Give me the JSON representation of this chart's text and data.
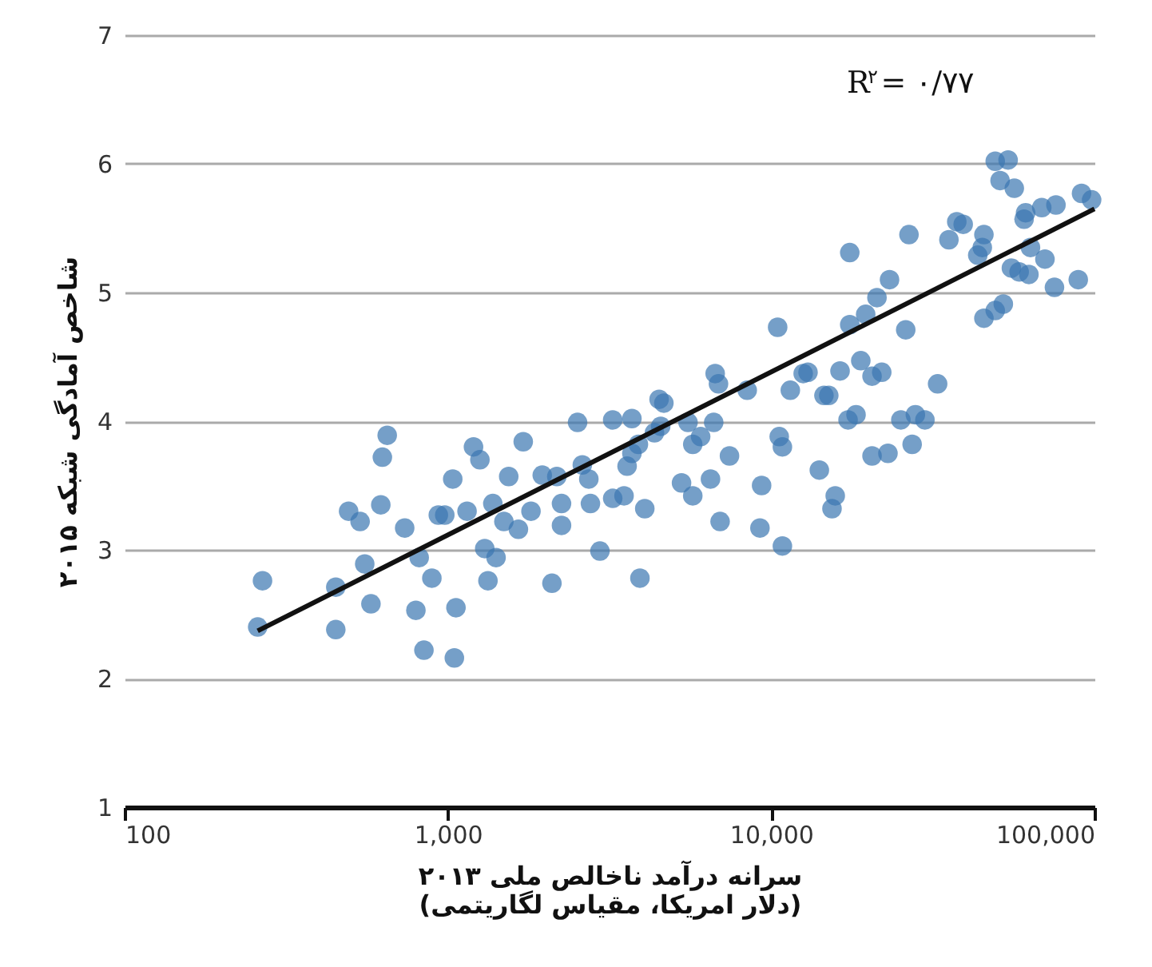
{
  "chart_data": {
    "type": "scatter",
    "xlabel": "سرانه درآمد ناخالص ملی ۲۰۱۳\n(دلار امریکا، مقیاس لگاریتمی)",
    "ylabel": "شاخص آمادگی شبکه ۲۰۱۵",
    "annotations": [
      "R$^{۲}$= ۰/۷۷"
    ],
    "log": "x",
    "grid": "y",
    "xlim": [
      100,
      100000
    ],
    "xticks": [
      {
        "value": 100,
        "label": "100"
      },
      {
        "value": 1000,
        "label": "1,000"
      },
      {
        "value": 10000,
        "label": "10,000"
      },
      {
        "value": 100000,
        "label": "100,000"
      }
    ],
    "ylim": [
      1,
      7
    ],
    "yticks": [
      1,
      2,
      3,
      4,
      5,
      6,
      7
    ],
    "series": [
      {
        "color": "#3a76b0",
        "marker": "circle",
        "x": [
          258,
          267,
          450,
          450,
          493,
          535,
          553,
          578,
          620,
          627,
          649,
          735,
          796,
          815,
          843,
          892,
          934,
          978,
          1035,
          1047,
          1059,
          1146,
          1200,
          1256,
          1300,
          1330,
          1377,
          1409,
          1490,
          1542,
          1652,
          1710,
          1807,
          1958,
          2098,
          2172,
          2246,
          2246,
          2518,
          2605,
          2728,
          2760,
          2953,
          3234,
          3234,
          3506,
          3583,
          3708,
          3708,
          3884,
          3926,
          4064,
          4355,
          4500,
          4552,
          4656,
          5280,
          5530,
          5720,
          5720,
          6050,
          6490,
          6640,
          6710,
          6870,
          6950,
          7430,
          8430,
          9230,
          9340,
          10470,
          10590,
          10830,
          10830,
          11460,
          12560,
          13000,
          14090,
          14560,
          15070,
          15420,
          15780,
          16330,
          17290,
          17500,
          17500,
          18300,
          18930,
          19600,
          20510,
          20510,
          21240,
          21980,
          22970,
          23230,
          25180,
          26070,
          26680,
          27290,
          27930,
          29890,
          32720,
          35460,
          37500,
          39260,
          43550,
          44980,
          45500,
          45500,
          49320,
          49320,
          51050,
          52240,
          54060,
          55340,
          56490,
          58480,
          60560,
          61240,
          62680,
          63390,
          68700,
          70270,
          75200,
          76000,
          89100,
          91200,
          98000
        ],
        "values": [
          2.4,
          2.76,
          2.38,
          2.71,
          3.3,
          3.22,
          2.89,
          2.58,
          3.35,
          3.72,
          3.89,
          3.17,
          2.53,
          2.94,
          2.22,
          2.78,
          3.27,
          3.27,
          3.55,
          2.16,
          2.55,
          3.3,
          3.8,
          3.7,
          3.01,
          2.76,
          3.36,
          2.94,
          3.22,
          3.57,
          3.16,
          3.84,
          3.3,
          3.58,
          2.74,
          3.57,
          3.36,
          3.19,
          3.99,
          3.66,
          3.55,
          3.36,
          2.99,
          4.01,
          3.4,
          3.42,
          3.65,
          4.02,
          3.75,
          3.82,
          2.78,
          3.32,
          3.91,
          4.17,
          3.96,
          4.14,
          3.52,
          3.99,
          3.82,
          3.42,
          3.88,
          3.55,
          3.99,
          4.37,
          4.29,
          3.22,
          3.73,
          4.24,
          3.17,
          3.5,
          4.73,
          3.88,
          3.8,
          3.03,
          4.24,
          4.37,
          4.38,
          3.62,
          4.2,
          4.2,
          3.32,
          3.42,
          4.39,
          4.01,
          5.31,
          4.75,
          4.05,
          4.47,
          4.83,
          3.73,
          4.35,
          4.96,
          4.38,
          3.75,
          5.1,
          4.01,
          4.71,
          5.45,
          3.82,
          4.05,
          4.01,
          4.29,
          5.41,
          5.55,
          5.53,
          5.29,
          5.35,
          5.45,
          4.8,
          4.86,
          6.02,
          5.87,
          4.91,
          6.03,
          5.19,
          5.81,
          5.16,
          5.57,
          5.62,
          5.14,
          5.35,
          5.66,
          5.26,
          5.04,
          5.68,
          5.1,
          5.77,
          5.72
        ]
      },
      {
        "type": "line",
        "marker": "none",
        "color": "#111111",
        "x": [
          258,
          100000
        ],
        "values": [
          2.37,
          5.65
        ]
      }
    ]
  }
}
